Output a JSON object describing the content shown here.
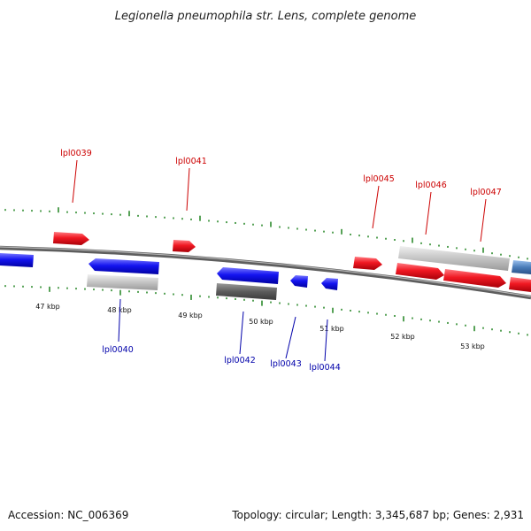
{
  "title": "Legionella pneumophila str. Lens, complete genome",
  "footer": {
    "accession": "Accession: NC_006369",
    "summary": "Topology: circular; Length: 3,345,687 bp; Genes: 2,931"
  },
  "colors": {
    "forward_gene": "#e8101a",
    "reverse_gene": "#1010e8",
    "rna_gene": "#c8c8c8",
    "dark_gene": "#606060",
    "steel_gene": "#5080b8",
    "forward_label": "#cc0000",
    "reverse_label": "#0000aa",
    "tick": "#2e8b2e",
    "backbone": "#888888"
  },
  "kbp_marks": [
    {
      "label": "47 kbp",
      "kbp": 47
    },
    {
      "label": "48 kbp",
      "kbp": 48
    },
    {
      "label": "49 kbp",
      "kbp": 49
    },
    {
      "label": "50 kbp",
      "kbp": 50
    },
    {
      "label": "51 kbp",
      "kbp": 51
    },
    {
      "label": "52 kbp",
      "kbp": 52
    },
    {
      "label": "53 kbp",
      "kbp": 53
    }
  ],
  "gene_labels": [
    {
      "label": "lpl0039",
      "strand": "forward"
    },
    {
      "label": "lpl0040",
      "strand": "reverse"
    },
    {
      "label": "lpl0041",
      "strand": "forward"
    },
    {
      "label": "lpl0042",
      "strand": "reverse"
    },
    {
      "label": "lpl0043",
      "strand": "reverse"
    },
    {
      "label": "lpl0044",
      "strand": "reverse"
    },
    {
      "label": "lpl0045",
      "strand": "forward"
    },
    {
      "label": "lpl0046",
      "strand": "forward"
    },
    {
      "label": "lpl0047",
      "strand": "forward"
    }
  ]
}
